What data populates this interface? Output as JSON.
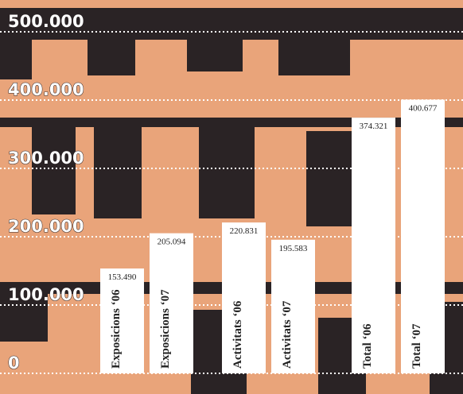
{
  "chart_data": {
    "type": "bar",
    "categories": [
      "Exposicions ‘06",
      "Exposicions ‘07",
      "Activitats ‘06",
      "Activitats ‘07",
      "Total ‘06",
      "Total ‘07"
    ],
    "values": [
      153490,
      205094,
      220831,
      195583,
      374321,
      400677
    ],
    "value_labels": [
      "153.490",
      "205.094",
      "220.831",
      "195.583",
      "374.321",
      "400.677"
    ],
    "color": "#ffffff",
    "ylim": [
      0,
      500000
    ],
    "yticks": [
      {
        "value": 0,
        "label": "0"
      },
      {
        "value": 100000,
        "label": "100.000"
      },
      {
        "value": 200000,
        "label": "200.000"
      },
      {
        "value": 300000,
        "label": "300.000"
      },
      {
        "value": 400000,
        "label": "400.000"
      },
      {
        "value": 500000,
        "label": "500.000"
      }
    ],
    "grid": true
  }
}
